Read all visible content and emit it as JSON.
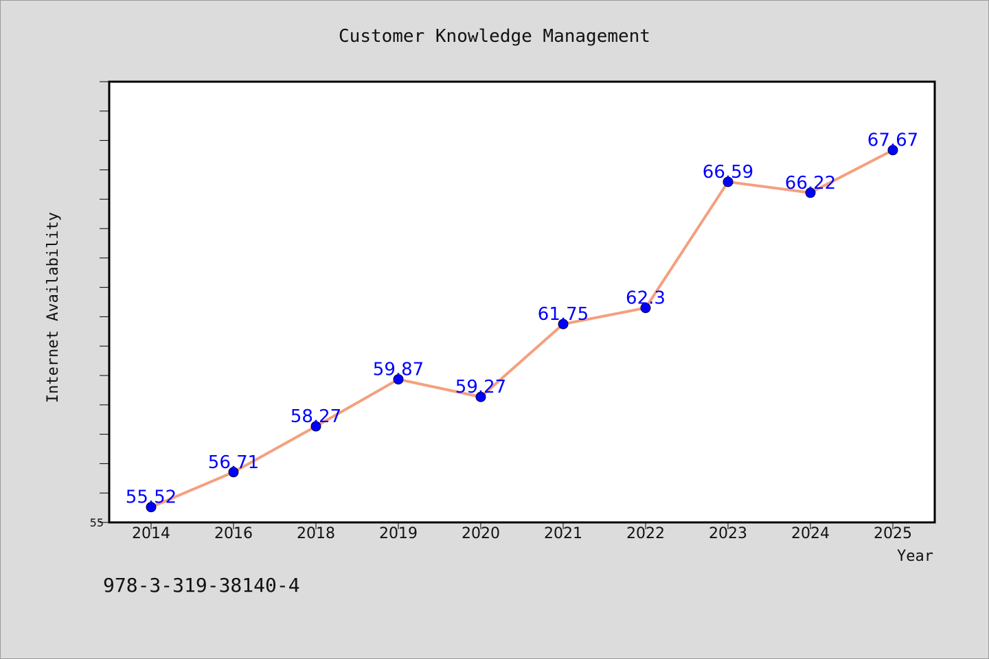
{
  "chart_data": {
    "type": "line",
    "title": "Customer Knowledge Management",
    "xlabel": "Year",
    "ylabel": "Internet Availability",
    "categories": [
      "2014",
      "2016",
      "2018",
      "2019",
      "2020",
      "2021",
      "2022",
      "2023",
      "2024",
      "2025"
    ],
    "series": [
      {
        "values": [
          55.52,
          56.71,
          58.27,
          59.87,
          59.27,
          61.75,
          62.3,
          66.59,
          66.22,
          67.67
        ],
        "labels": [
          "55.52",
          "56.71",
          "58.27",
          "59.87",
          "59.27",
          "61.75",
          "62.3",
          "66.59",
          "66.22",
          "67.67"
        ]
      }
    ],
    "ylim": [
      55,
      70
    ],
    "yticks": [
      "55"
    ],
    "grid": false,
    "colors": {
      "line": "#f4a07e",
      "marker": "#0000ff",
      "data_label": "#0000ff",
      "plot_background": "#ffffff",
      "figure_background": "#dcdcdc"
    }
  },
  "footer": {
    "isbn": "978-3-319-38140-4"
  }
}
